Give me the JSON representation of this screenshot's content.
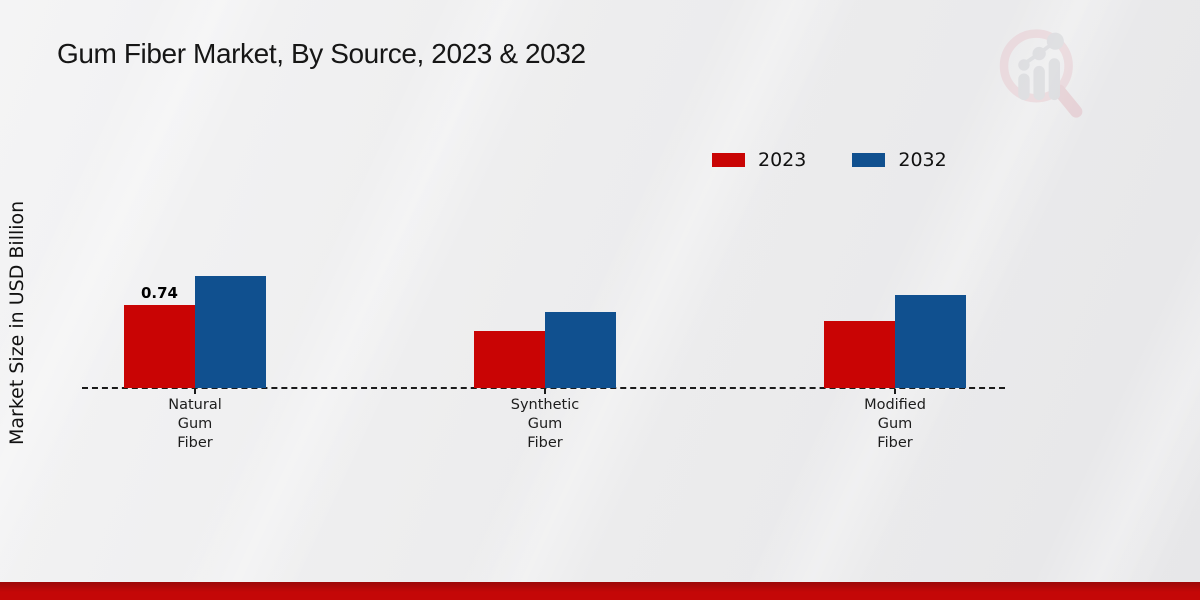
{
  "title": "Gum Fiber Market, By Source, 2023 & 2032",
  "y_axis_label": "Market Size in USD Billion",
  "watermark_icon": "magnifier-growth-chart-logo",
  "colors": {
    "series_2023": "#c90404",
    "series_2032": "#10508f",
    "footer_band": "#c40707",
    "baseline": "#1a1a1a"
  },
  "legend": {
    "position": "top-right",
    "items": [
      {
        "label": "2023",
        "color": "#c90404"
      },
      {
        "label": "2032",
        "color": "#10508f"
      }
    ]
  },
  "chart_data": {
    "type": "bar",
    "title": "Gum Fiber Market, By Source, 2023 & 2032",
    "xlabel": "",
    "ylabel": "Market Size in USD Billion",
    "categories": [
      "Natural Gum Fiber",
      "Synthetic Gum Fiber",
      "Modified Gum Fiber"
    ],
    "series": [
      {
        "name": "2023",
        "color": "#c90404",
        "values": [
          0.74,
          0.51,
          0.6
        ]
      },
      {
        "name": "2032",
        "color": "#10508f",
        "values": [
          1.0,
          0.68,
          0.83
        ]
      }
    ],
    "data_labels": [
      {
        "series": "2023",
        "category_index": 0,
        "text": "0.74"
      }
    ],
    "ylim": [
      0,
      1.2
    ],
    "grid": false,
    "legend_position": "top-right",
    "baseline_style": "dashed",
    "y_axis_ticks_visible": false
  }
}
